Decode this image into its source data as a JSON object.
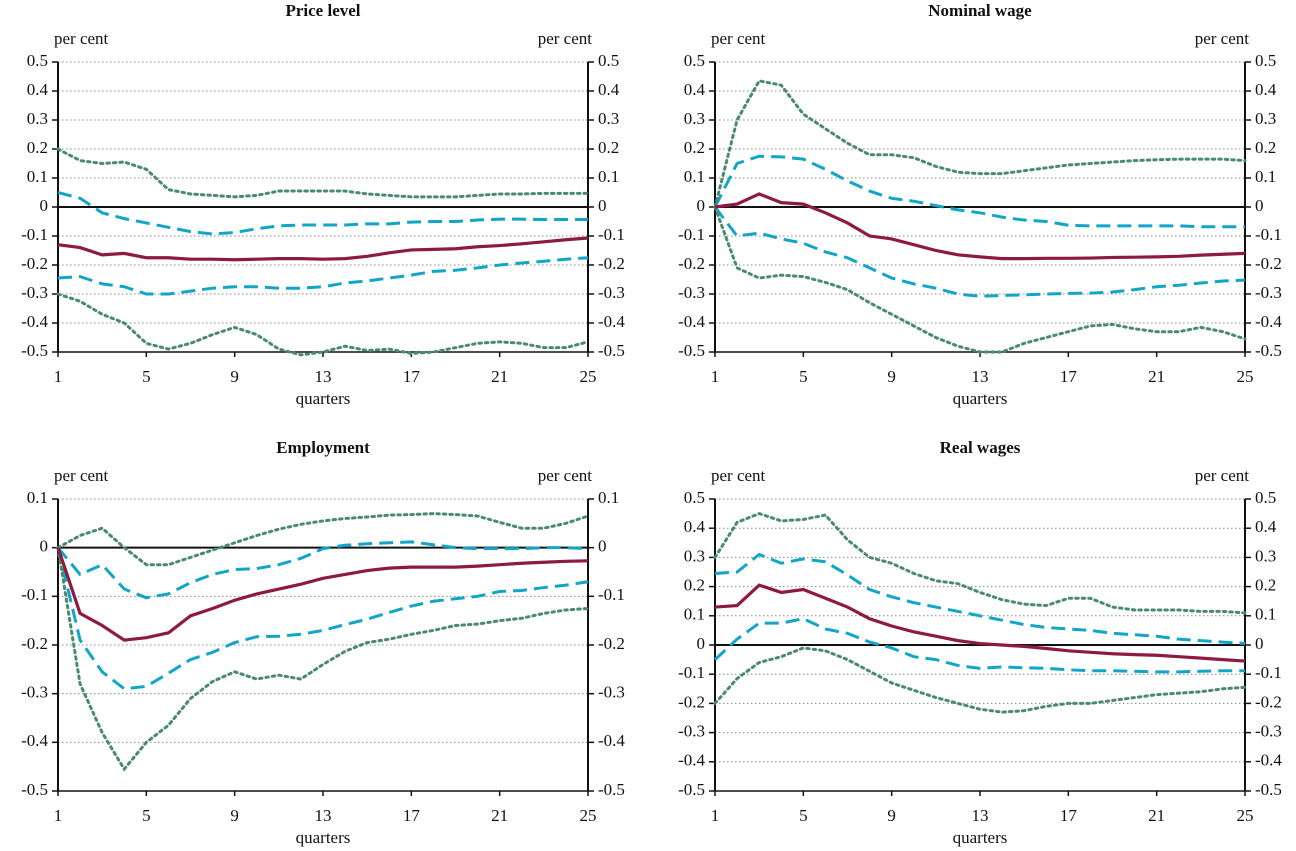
{
  "chart_data": [
    {
      "type": "line",
      "title": "Price level",
      "ylabel": "per cent",
      "y2label": "per cent",
      "xlabel": "quarters",
      "x": [
        1,
        2,
        3,
        4,
        5,
        6,
        7,
        8,
        9,
        10,
        11,
        12,
        13,
        14,
        15,
        16,
        17,
        18,
        19,
        20,
        21,
        22,
        23,
        24,
        25
      ],
      "xlim": [
        1,
        25
      ],
      "xticks": [
        1,
        5,
        9,
        13,
        17,
        21,
        25
      ],
      "ylim": [
        -0.5,
        0.5
      ],
      "yticks": [
        0.5,
        0.4,
        0.3,
        0.2,
        0.1,
        0,
        -0.1,
        -0.2,
        -0.3,
        -0.4,
        -0.5
      ],
      "y2lim": [
        -0.5,
        0.5
      ],
      "y2ticks": [
        0.5,
        0.4,
        0.3,
        0.2,
        0.1,
        0,
        -0.1,
        -0.2,
        -0.3,
        -0.4,
        -0.5
      ],
      "grid": true,
      "series": [
        {
          "color": "#12a5c8",
          "dash": "dashed",
          "values": [
            0.05,
            0.03,
            -0.02,
            -0.04,
            -0.055,
            -0.07,
            -0.085,
            -0.093,
            -0.088,
            -0.075,
            -0.065,
            -0.062,
            -0.062,
            -0.062,
            -0.058,
            -0.058,
            -0.052,
            -0.05,
            -0.05,
            -0.045,
            -0.042,
            -0.042,
            -0.043,
            -0.043,
            -0.043
          ]
        },
        {
          "color": "#12a5c8",
          "dash": "dashed",
          "values": [
            -0.245,
            -0.24,
            -0.265,
            -0.275,
            -0.3,
            -0.3,
            -0.29,
            -0.28,
            -0.275,
            -0.275,
            -0.28,
            -0.28,
            -0.275,
            -0.262,
            -0.255,
            -0.245,
            -0.235,
            -0.222,
            -0.218,
            -0.21,
            -0.2,
            -0.193,
            -0.187,
            -0.18,
            -0.175
          ]
        },
        {
          "color": "#4a8a6f",
          "dash": "dotted",
          "values": [
            0.2,
            0.16,
            0.15,
            0.155,
            0.13,
            0.06,
            0.045,
            0.04,
            0.035,
            0.04,
            0.055,
            0.055,
            0.055,
            0.055,
            0.045,
            0.04,
            0.035,
            0.035,
            0.035,
            0.04,
            0.045,
            0.045,
            0.047,
            0.047,
            0.047
          ]
        },
        {
          "color": "#4a8a6f",
          "dash": "dotted",
          "values": [
            -0.3,
            -0.325,
            -0.37,
            -0.4,
            -0.47,
            -0.49,
            -0.47,
            -0.44,
            -0.415,
            -0.44,
            -0.49,
            -0.51,
            -0.5,
            -0.48,
            -0.495,
            -0.49,
            -0.505,
            -0.5,
            -0.485,
            -0.47,
            -0.465,
            -0.47,
            -0.485,
            -0.485,
            -0.465
          ]
        },
        {
          "color": "#8e1a40",
          "dash": "solid",
          "values": [
            -0.13,
            -0.14,
            -0.165,
            -0.16,
            -0.175,
            -0.175,
            -0.18,
            -0.18,
            -0.182,
            -0.18,
            -0.178,
            -0.178,
            -0.18,
            -0.178,
            -0.17,
            -0.158,
            -0.148,
            -0.146,
            -0.144,
            -0.137,
            -0.133,
            -0.127,
            -0.12,
            -0.113,
            -0.107
          ]
        }
      ]
    },
    {
      "type": "line",
      "title": "Nominal wage",
      "ylabel": "per cent",
      "y2label": "per cent",
      "xlabel": "quarters",
      "x": [
        1,
        2,
        3,
        4,
        5,
        6,
        7,
        8,
        9,
        10,
        11,
        12,
        13,
        14,
        15,
        16,
        17,
        18,
        19,
        20,
        21,
        22,
        23,
        24,
        25
      ],
      "xlim": [
        1,
        25
      ],
      "xticks": [
        1,
        5,
        9,
        13,
        17,
        21,
        25
      ],
      "ylim": [
        -0.5,
        0.5
      ],
      "yticks": [
        0.5,
        0.4,
        0.3,
        0.2,
        0.1,
        0,
        -0.1,
        -0.2,
        -0.3,
        -0.4,
        -0.5
      ],
      "y2lim": [
        -0.5,
        0.5
      ],
      "y2ticks": [
        0.5,
        0.4,
        0.3,
        0.2,
        0.1,
        0,
        -0.1,
        -0.2,
        -0.3,
        -0.4,
        -0.5
      ],
      "grid": true,
      "series": [
        {
          "color": "#12a5c8",
          "dash": "dashed",
          "values": [
            0,
            0.15,
            0.175,
            0.173,
            0.165,
            0.13,
            0.09,
            0.055,
            0.03,
            0.02,
            0.005,
            -0.01,
            -0.02,
            -0.035,
            -0.045,
            -0.05,
            -0.063,
            -0.065,
            -0.065,
            -0.065,
            -0.065,
            -0.065,
            -0.068,
            -0.068,
            -0.068
          ]
        },
        {
          "color": "#12a5c8",
          "dash": "dashed",
          "values": [
            0,
            -0.1,
            -0.09,
            -0.11,
            -0.125,
            -0.155,
            -0.175,
            -0.21,
            -0.245,
            -0.265,
            -0.28,
            -0.3,
            -0.308,
            -0.305,
            -0.303,
            -0.3,
            -0.298,
            -0.297,
            -0.293,
            -0.285,
            -0.275,
            -0.27,
            -0.262,
            -0.255,
            -0.252
          ]
        },
        {
          "color": "#4a8a6f",
          "dash": "dotted",
          "values": [
            0,
            0.3,
            0.435,
            0.42,
            0.32,
            0.27,
            0.22,
            0.18,
            0.18,
            0.17,
            0.14,
            0.12,
            0.115,
            0.115,
            0.125,
            0.135,
            0.145,
            0.15,
            0.155,
            0.16,
            0.163,
            0.165,
            0.165,
            0.165,
            0.16
          ]
        },
        {
          "color": "#4a8a6f",
          "dash": "dotted",
          "values": [
            0,
            -0.21,
            -0.245,
            -0.235,
            -0.24,
            -0.26,
            -0.285,
            -0.33,
            -0.37,
            -0.41,
            -0.45,
            -0.48,
            -0.5,
            -0.5,
            -0.47,
            -0.45,
            -0.43,
            -0.41,
            -0.405,
            -0.42,
            -0.43,
            -0.43,
            -0.415,
            -0.43,
            -0.455
          ]
        },
        {
          "color": "#8e1a40",
          "dash": "solid",
          "values": [
            0,
            0.01,
            0.045,
            0.015,
            0.01,
            -0.02,
            -0.055,
            -0.1,
            -0.11,
            -0.13,
            -0.15,
            -0.165,
            -0.172,
            -0.178,
            -0.178,
            -0.177,
            -0.177,
            -0.176,
            -0.174,
            -0.173,
            -0.172,
            -0.17,
            -0.166,
            -0.163,
            -0.16
          ]
        }
      ]
    },
    {
      "type": "line",
      "title": "Employment",
      "ylabel": "per cent",
      "y2label": "per cent",
      "xlabel": "quarters",
      "x": [
        1,
        2,
        3,
        4,
        5,
        6,
        7,
        8,
        9,
        10,
        11,
        12,
        13,
        14,
        15,
        16,
        17,
        18,
        19,
        20,
        21,
        22,
        23,
        24,
        25
      ],
      "xlim": [
        1,
        25
      ],
      "xticks": [
        1,
        5,
        9,
        13,
        17,
        21,
        25
      ],
      "ylim": [
        -0.5,
        0.1
      ],
      "yticks": [
        0.1,
        0,
        -0.1,
        -0.2,
        -0.3,
        -0.4,
        -0.5
      ],
      "y2lim": [
        -0.5,
        0.1
      ],
      "y2ticks": [
        0.1,
        0,
        -0.1,
        -0.2,
        -0.3,
        -0.4,
        -0.5
      ],
      "grid": true,
      "series": [
        {
          "color": "#12a5c8",
          "dash": "dashed",
          "values": [
            0,
            -0.055,
            -0.035,
            -0.085,
            -0.103,
            -0.095,
            -0.072,
            -0.055,
            -0.045,
            -0.043,
            -0.035,
            -0.022,
            -0.002,
            0.005,
            0.008,
            0.01,
            0.012,
            0.006,
            0,
            -0.002,
            -0.002,
            -0.002,
            0,
            0,
            -0.002
          ]
        },
        {
          "color": "#12a5c8",
          "dash": "dashed",
          "values": [
            0,
            -0.19,
            -0.255,
            -0.29,
            -0.285,
            -0.258,
            -0.23,
            -0.215,
            -0.195,
            -0.183,
            -0.182,
            -0.178,
            -0.17,
            -0.158,
            -0.147,
            -0.133,
            -0.12,
            -0.11,
            -0.105,
            -0.1,
            -0.09,
            -0.088,
            -0.082,
            -0.077,
            -0.07
          ]
        },
        {
          "color": "#4a8a6f",
          "dash": "dotted",
          "values": [
            0,
            0.025,
            0.04,
            0,
            -0.035,
            -0.035,
            -0.02,
            -0.005,
            0.01,
            0.025,
            0.038,
            0.048,
            0.055,
            0.06,
            0.063,
            0.067,
            0.068,
            0.07,
            0.068,
            0.065,
            0.052,
            0.04,
            0.04,
            0.05,
            0.065
          ]
        },
        {
          "color": "#4a8a6f",
          "dash": "dotted",
          "values": [
            0,
            -0.28,
            -0.38,
            -0.455,
            -0.4,
            -0.365,
            -0.31,
            -0.275,
            -0.255,
            -0.27,
            -0.262,
            -0.27,
            -0.24,
            -0.213,
            -0.195,
            -0.188,
            -0.178,
            -0.17,
            -0.16,
            -0.157,
            -0.15,
            -0.145,
            -0.135,
            -0.128,
            -0.125
          ]
        },
        {
          "color": "#8e1a40",
          "dash": "solid",
          "values": [
            0,
            -0.135,
            -0.16,
            -0.19,
            -0.185,
            -0.175,
            -0.14,
            -0.125,
            -0.108,
            -0.095,
            -0.085,
            -0.075,
            -0.063,
            -0.055,
            -0.047,
            -0.042,
            -0.04,
            -0.04,
            -0.04,
            -0.038,
            -0.035,
            -0.032,
            -0.03,
            -0.028,
            -0.027
          ]
        }
      ]
    },
    {
      "type": "line",
      "title": "Real wages",
      "ylabel": "per cent",
      "y2label": "per cent",
      "xlabel": "quarters",
      "x": [
        1,
        2,
        3,
        4,
        5,
        6,
        7,
        8,
        9,
        10,
        11,
        12,
        13,
        14,
        15,
        16,
        17,
        18,
        19,
        20,
        21,
        22,
        23,
        24,
        25
      ],
      "xlim": [
        1,
        25
      ],
      "xticks": [
        1,
        5,
        9,
        13,
        17,
        21,
        25
      ],
      "ylim": [
        -0.5,
        0.5
      ],
      "yticks": [
        0.5,
        0.4,
        0.3,
        0.2,
        0.1,
        0,
        -0.1,
        -0.2,
        -0.3,
        -0.4,
        -0.5
      ],
      "y2lim": [
        -0.5,
        0.5
      ],
      "y2ticks": [
        0.5,
        0.4,
        0.3,
        0.2,
        0.1,
        0,
        -0.1,
        -0.2,
        -0.3,
        -0.4,
        -0.5
      ],
      "grid": true,
      "series": [
        {
          "color": "#12a5c8",
          "dash": "dashed",
          "values": [
            0.245,
            0.25,
            0.31,
            0.28,
            0.295,
            0.285,
            0.24,
            0.19,
            0.165,
            0.145,
            0.13,
            0.115,
            0.1,
            0.085,
            0.07,
            0.06,
            0.055,
            0.05,
            0.04,
            0.035,
            0.03,
            0.02,
            0.015,
            0.01,
            0.005
          ]
        },
        {
          "color": "#12a5c8",
          "dash": "dashed",
          "values": [
            -0.05,
            0.02,
            0.075,
            0.075,
            0.09,
            0.055,
            0.04,
            0.01,
            -0.01,
            -0.04,
            -0.05,
            -0.07,
            -0.08,
            -0.075,
            -0.078,
            -0.08,
            -0.085,
            -0.088,
            -0.088,
            -0.09,
            -0.092,
            -0.092,
            -0.09,
            -0.088,
            -0.088
          ]
        },
        {
          "color": "#4a8a6f",
          "dash": "dotted",
          "values": [
            0.3,
            0.42,
            0.45,
            0.425,
            0.43,
            0.445,
            0.36,
            0.3,
            0.28,
            0.245,
            0.22,
            0.21,
            0.18,
            0.155,
            0.14,
            0.135,
            0.16,
            0.16,
            0.13,
            0.12,
            0.12,
            0.12,
            0.115,
            0.115,
            0.11
          ]
        },
        {
          "color": "#4a8a6f",
          "dash": "dotted",
          "values": [
            -0.2,
            -0.115,
            -0.06,
            -0.04,
            -0.01,
            -0.02,
            -0.05,
            -0.09,
            -0.13,
            -0.155,
            -0.18,
            -0.2,
            -0.22,
            -0.23,
            -0.225,
            -0.21,
            -0.2,
            -0.2,
            -0.19,
            -0.18,
            -0.17,
            -0.165,
            -0.16,
            -0.15,
            -0.145
          ]
        },
        {
          "color": "#8e1a40",
          "dash": "solid",
          "values": [
            0.13,
            0.135,
            0.205,
            0.18,
            0.19,
            0.16,
            0.13,
            0.09,
            0.065,
            0.045,
            0.03,
            0.015,
            0.005,
            0,
            -0.005,
            -0.012,
            -0.02,
            -0.025,
            -0.03,
            -0.033,
            -0.035,
            -0.04,
            -0.045,
            -0.05,
            -0.055
          ]
        }
      ]
    }
  ]
}
